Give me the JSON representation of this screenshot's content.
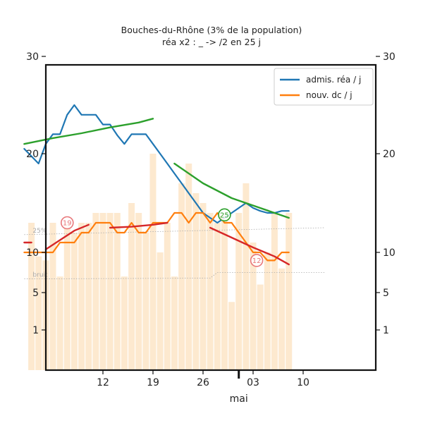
{
  "title": "Bouches-du-Rhône (3% de la population)",
  "subtitle": "réa x2 : _ -> /2 en 25 j",
  "chart_data": {
    "type": "line",
    "title": "Bouches-du-Rhône (3% de la population)",
    "subtitle": "réa x2 : _ -> /2 en 25 j",
    "x_axis": {
      "start_day": 1,
      "end_day": 43,
      "ticks": [
        {
          "day": 12,
          "label": "12"
        },
        {
          "day": 19,
          "label": "19"
        },
        {
          "day": 26,
          "label": "26"
        },
        {
          "day": 33,
          "label": "03"
        },
        {
          "day": 40,
          "label": "10"
        }
      ],
      "major_tick": {
        "day": 31,
        "label": "mai"
      }
    },
    "y_axis": {
      "ticks": [
        {
          "value": 30,
          "label": "30"
        },
        {
          "value": 20,
          "label": "20"
        },
        {
          "value": 10,
          "label": "10"
        },
        {
          "value": 5,
          "label": "5"
        },
        {
          "value": 1,
          "label": "1"
        }
      ],
      "tick_map": [
        [
          1,
          468
        ],
        [
          5,
          415
        ],
        [
          10,
          358
        ],
        [
          20,
          218
        ],
        [
          30,
          80
        ]
      ],
      "left_axis_shown": true,
      "right_axis_shown": true
    },
    "legend": {
      "placement": "top-right",
      "entries": [
        {
          "label": "admis. réa / j",
          "color": "#1f77b4"
        },
        {
          "label": "nouv. dc / j",
          "color": "#ff7f0e"
        }
      ]
    },
    "bars": {
      "color": "#fde9cf",
      "start_day": 2,
      "values": [
        13,
        9.5,
        9,
        13,
        7,
        13,
        12,
        13,
        13,
        14,
        14,
        14,
        14,
        7,
        15,
        14,
        12,
        20,
        10,
        13,
        7,
        17,
        19,
        16,
        15,
        14,
        13,
        14,
        4,
        14,
        17,
        11,
        6,
        10,
        14,
        8,
        14
      ]
    },
    "series": [
      {
        "name": "admis. réa / j",
        "color": "#1f77b4",
        "x": [
          1,
          3,
          4,
          5,
          6,
          7,
          8,
          9,
          10,
          11,
          12,
          13,
          14,
          15,
          16,
          17,
          18,
          19,
          20,
          21,
          22,
          23,
          24,
          25,
          26,
          27,
          28,
          29,
          30,
          31,
          32,
          33,
          34,
          35,
          36,
          37,
          38
        ],
        "y": [
          20.5,
          19,
          21,
          22,
          22,
          24,
          25,
          24,
          24,
          24,
          23,
          23,
          21.9,
          21,
          22,
          22,
          22,
          21,
          20,
          19,
          18,
          17,
          16,
          15,
          14,
          13.5,
          13,
          13.5,
          14,
          14.5,
          15,
          14.5,
          14.2,
          14,
          14,
          14.2,
          14.2
        ]
      },
      {
        "name": "nouv. dc / j",
        "color": "#ff7f0e",
        "x": [
          1,
          3,
          4,
          5,
          6,
          7,
          8,
          9,
          10,
          11,
          12,
          13,
          14,
          15,
          16,
          17,
          18,
          19,
          20,
          21,
          22,
          23,
          24,
          25,
          26,
          27,
          28,
          29,
          30,
          31,
          32,
          33,
          34,
          35,
          36,
          37,
          38
        ],
        "y": [
          10,
          10,
          10,
          10,
          11,
          11,
          11,
          12,
          12,
          13,
          13,
          13,
          12,
          12,
          13,
          12,
          12,
          13,
          13,
          13,
          14,
          14,
          13,
          14,
          14,
          13,
          14,
          13,
          13,
          12,
          11,
          10,
          10,
          9,
          9,
          10,
          10
        ]
      },
      {
        "name": "",
        "role": "trend réa",
        "color": "#2ca02c",
        "segments": [
          {
            "x": [
              1,
              5,
              9,
              13,
              17,
              19
            ],
            "y": [
              21,
              21.6,
              22.1,
              22.7,
              23.2,
              23.6
            ]
          },
          {
            "x": [
              22,
              26,
              30,
              34,
              38
            ],
            "y": [
              19,
              17,
              15.5,
              14.5,
              13.5
            ]
          }
        ]
      },
      {
        "name": "",
        "role": "trend dc",
        "color": "#d62728",
        "segments": [
          {
            "x": [
              1,
              2
            ],
            "y": [
              11,
              11
            ]
          },
          {
            "x": [
              4,
              8,
              10
            ],
            "y": [
              10.3,
              12.2,
              12.8
            ]
          },
          {
            "x": [
              13,
              16,
              19,
              21
            ],
            "y": [
              12.5,
              12.6,
              12.8,
              13
            ]
          },
          {
            "x": [
              27,
              30,
              33,
              36,
              38
            ],
            "y": [
              12.5,
              11.5,
              10.5,
              9.5,
              8.5
            ]
          }
        ]
      }
    ],
    "reference_lines": [
      {
        "label": "25%",
        "color": "#aaaaaa",
        "x": [
          1,
          43
        ],
        "y": [
          11.8,
          12.5
        ]
      },
      {
        "label": "bruit",
        "color": "#aaaaaa",
        "x": [
          1,
          27,
          28,
          43
        ],
        "y": [
          6.7,
          6.8,
          7.5,
          7.5
        ]
      }
    ],
    "annotations": [
      {
        "text": "19",
        "kind": "dc doubling time",
        "color": "#e8777a",
        "x": 7,
        "y": 13
      },
      {
        "text": "25",
        "kind": "réa halving time",
        "color": "#2ca02c",
        "x": 29,
        "y": 13.8
      },
      {
        "text": "12",
        "kind": "dc halving time",
        "color": "#e8777a",
        "x": 33.5,
        "y": 9
      }
    ]
  }
}
